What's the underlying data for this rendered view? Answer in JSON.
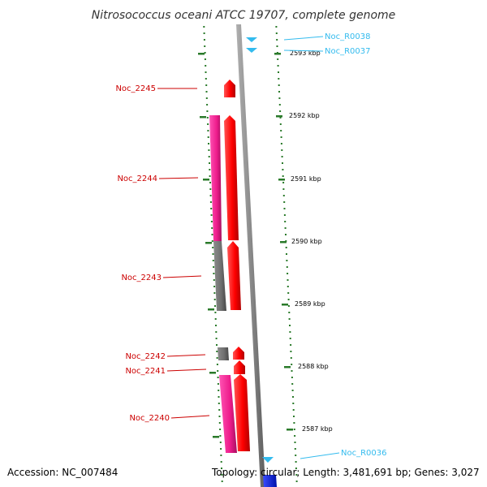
{
  "title": "Nitrosococcus oceani ATCC 19707, complete genome",
  "accession": "Accession: NC_007484",
  "topology": "Topology: circular; Length: 3,481,691 bp; Genes: 3,027",
  "colors": {
    "gene_label": "#cc0000",
    "rna_label": "#33bbee",
    "cds_forward": "#ff0000",
    "feature_magenta": "#ee1c8c",
    "feature_gray": "#6e6e6e",
    "trna": "#33bbee",
    "backbone": "#8a8a8a",
    "tick": "#2a7a2a"
  },
  "genes": [
    {
      "id": "Noc_2245",
      "label": "Noc_2245",
      "type": "gene"
    },
    {
      "id": "Noc_2244",
      "label": "Noc_2244",
      "type": "gene"
    },
    {
      "id": "Noc_2243",
      "label": "Noc_2243",
      "type": "gene"
    },
    {
      "id": "Noc_2242",
      "label": "Noc_2242",
      "type": "gene"
    },
    {
      "id": "Noc_2241",
      "label": "Noc_2241",
      "type": "gene"
    },
    {
      "id": "Noc_2240",
      "label": "Noc_2240",
      "type": "gene"
    },
    {
      "id": "Noc_R0038",
      "label": "Noc_R0038",
      "type": "rna"
    },
    {
      "id": "Noc_R0037",
      "label": "Noc_R0037",
      "type": "rna"
    },
    {
      "id": "Noc_R0036",
      "label": "Noc_R0036",
      "type": "rna"
    }
  ],
  "scale_labels": [
    "2593 kbp",
    "2592 kbp",
    "2591 kbp",
    "2590 kbp",
    "2589 kbp",
    "2588 kbp",
    "2587 kbp"
  ]
}
